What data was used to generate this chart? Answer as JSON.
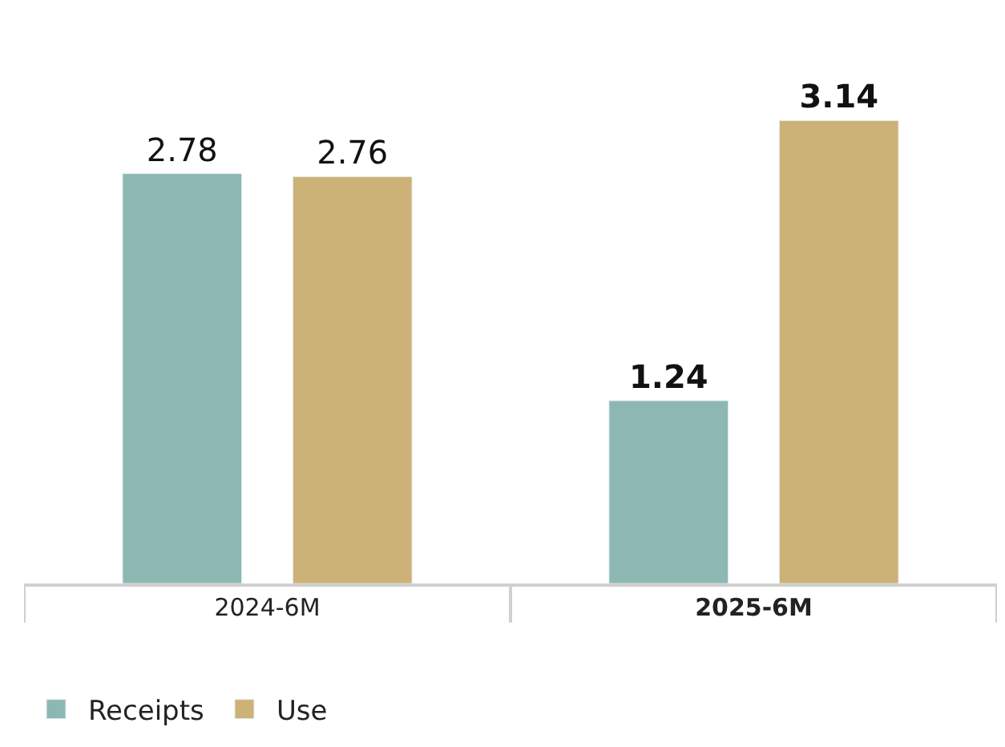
{
  "chart_data": {
    "type": "bar",
    "categories": [
      "2024-6M",
      "2025-6M"
    ],
    "series": [
      {
        "name": "Receipts",
        "color": "#8db8b2",
        "values": [
          2.78,
          1.24
        ]
      },
      {
        "name": "Use",
        "color": "#cdb277",
        "values": [
          2.76,
          3.14
        ]
      }
    ],
    "data_labels": true,
    "legend": "bottom left"
  }
}
